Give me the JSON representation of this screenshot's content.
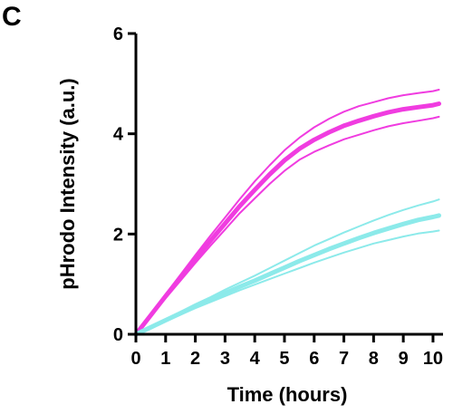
{
  "panel_label": "C",
  "chart_data": {
    "type": "line",
    "title": "",
    "xlabel": "Time (hours)",
    "ylabel": "pHrodo Intensity (a.u.)",
    "xlim": [
      0,
      10.2
    ],
    "ylim": [
      0,
      6
    ],
    "x_ticks": [
      0,
      1,
      2,
      3,
      4,
      5,
      6,
      7,
      8,
      9,
      10
    ],
    "y_ticks": [
      0,
      2,
      4,
      6
    ],
    "grid": false,
    "legend": "none",
    "x": [
      0,
      0.5,
      1,
      1.5,
      2,
      2.5,
      3,
      3.5,
      4,
      4.5,
      5,
      5.5,
      6,
      6.5,
      7,
      7.5,
      8,
      8.5,
      9,
      9.5,
      10,
      10.2
    ],
    "series": [
      {
        "role": "mean",
        "color": "#f03ce0",
        "values": [
          0,
          0.38,
          0.76,
          1.13,
          1.5,
          1.86,
          2.21,
          2.56,
          2.88,
          3.19,
          3.47,
          3.7,
          3.88,
          4.03,
          4.16,
          4.26,
          4.35,
          4.43,
          4.49,
          4.53,
          4.57,
          4.6
        ]
      },
      {
        "role": "upper",
        "color": "#f03ce0",
        "values": [
          0,
          0.4,
          0.8,
          1.19,
          1.58,
          1.96,
          2.33,
          2.7,
          3.05,
          3.37,
          3.67,
          3.92,
          4.13,
          4.3,
          4.44,
          4.55,
          4.63,
          4.71,
          4.77,
          4.81,
          4.85,
          4.88
        ]
      },
      {
        "role": "lower",
        "color": "#f03ce0",
        "values": [
          0,
          0.36,
          0.72,
          1.07,
          1.42,
          1.76,
          2.09,
          2.42,
          2.71,
          3.0,
          3.26,
          3.48,
          3.64,
          3.77,
          3.89,
          3.98,
          4.07,
          4.15,
          4.21,
          4.26,
          4.31,
          4.34
        ]
      },
      {
        "role": "mean",
        "color": "#8ceaea",
        "values": [
          0,
          0.14,
          0.28,
          0.42,
          0.56,
          0.69,
          0.82,
          0.95,
          1.07,
          1.2,
          1.33,
          1.46,
          1.58,
          1.7,
          1.81,
          1.92,
          2.02,
          2.11,
          2.2,
          2.28,
          2.34,
          2.37
        ]
      },
      {
        "role": "upper",
        "color": "#8ceaea",
        "values": [
          0,
          0.15,
          0.3,
          0.45,
          0.6,
          0.74,
          0.89,
          1.03,
          1.17,
          1.32,
          1.47,
          1.62,
          1.77,
          1.9,
          2.03,
          2.15,
          2.27,
          2.38,
          2.48,
          2.57,
          2.65,
          2.69
        ]
      },
      {
        "role": "lower",
        "color": "#8ceaea",
        "values": [
          0,
          0.13,
          0.26,
          0.39,
          0.52,
          0.64,
          0.76,
          0.88,
          0.99,
          1.1,
          1.21,
          1.32,
          1.43,
          1.53,
          1.63,
          1.72,
          1.81,
          1.88,
          1.95,
          2.01,
          2.05,
          2.07
        ]
      }
    ]
  }
}
